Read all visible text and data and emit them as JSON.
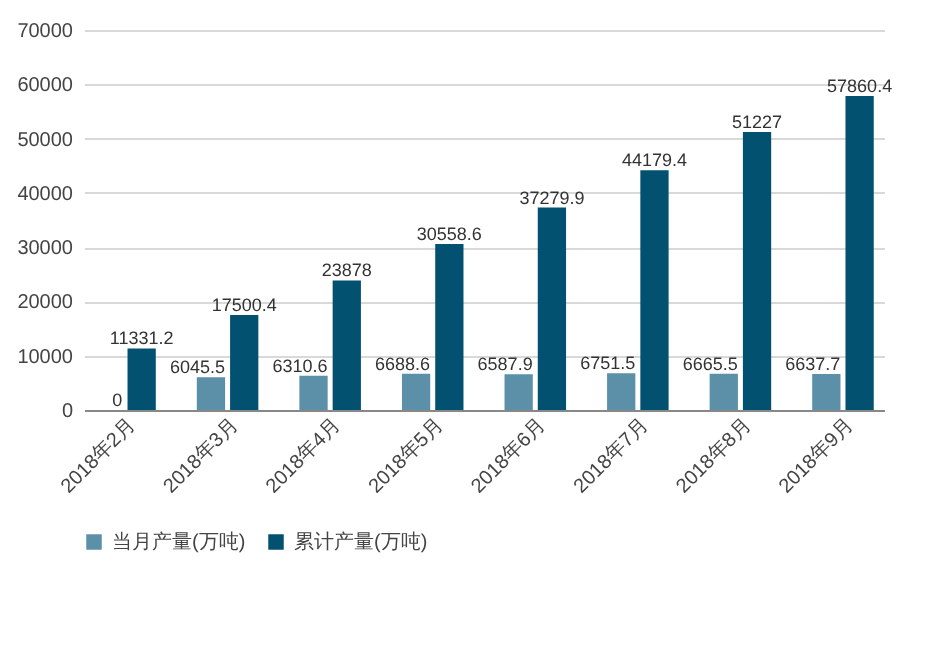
{
  "chart_data": {
    "type": "bar",
    "categories": [
      "2018年2月",
      "2018年3月",
      "2018年4月",
      "2018年5月",
      "2018年6月",
      "2018年7月",
      "2018年8月",
      "2018年9月"
    ],
    "series": [
      {
        "name": "当月产量(万吨)",
        "color": "#5b90a8",
        "values": [
          0,
          6045.5,
          6310.6,
          6688.6,
          6587.9,
          6751.5,
          6665.5,
          6637.7
        ]
      },
      {
        "name": "累计产量(万吨)",
        "color": "#035170",
        "values": [
          11331.2,
          17500.4,
          23878,
          30558.6,
          37279.9,
          44179.4,
          51227,
          57860.4
        ]
      }
    ],
    "ylim": [
      0,
      70000
    ],
    "yticks": [
      0,
      10000,
      20000,
      30000,
      40000,
      50000,
      60000,
      70000
    ],
    "grid": "y",
    "legend": "bottom",
    "data_labels": true
  }
}
